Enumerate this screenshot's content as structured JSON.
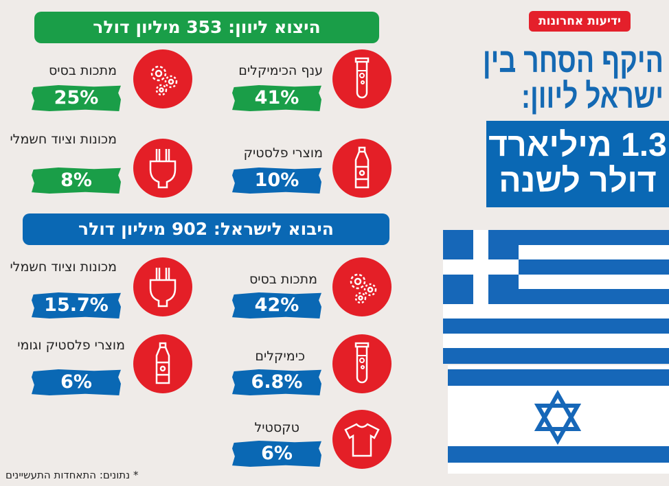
{
  "logo": "ידיעות אחרונות",
  "title": {
    "line1": "היקף הסחר בין",
    "line2": "ישראל ליוון:"
  },
  "total": {
    "line1": "1.3 מיליארד",
    "line2": "דולר לשנה"
  },
  "export": {
    "header": "היצוא ליוון: 353 מיליון דולר",
    "items": [
      {
        "label": "ענף הכימיקלים",
        "value": "41%",
        "icon": "test-tube-icon"
      },
      {
        "label": "מתכות בסיס",
        "value": "25%",
        "icon": "gears-icon"
      },
      {
        "label": "מוצרי פלסטיק",
        "value": "10%",
        "icon": "bottle-icon"
      },
      {
        "label": "מכונות וציוד חשמלי",
        "value": "8%",
        "icon": "plug-icon"
      }
    ]
  },
  "import": {
    "header": "היבוא לישראל: 902 מיליון דולר",
    "items": [
      {
        "label": "מתכות בסיס",
        "value": "42%",
        "icon": "gears-icon"
      },
      {
        "label": "מכונות וציוד חשמלי",
        "value": "15.7%",
        "icon": "plug-icon"
      },
      {
        "label": "כימיקלים",
        "value": "6.8%",
        "icon": "test-tube-icon"
      },
      {
        "label": "מוצרי פלסטיק וגומי",
        "value": "6%",
        "icon": "bottle-icon"
      },
      {
        "label": "טקסטיל",
        "value": "6%",
        "icon": "tshirt-icon"
      }
    ]
  },
  "note": "* נתונים: התאחדות התעשיינים",
  "colors": {
    "red": "#e41f27",
    "green": "#1a9e48",
    "blue": "#0a68b4"
  }
}
